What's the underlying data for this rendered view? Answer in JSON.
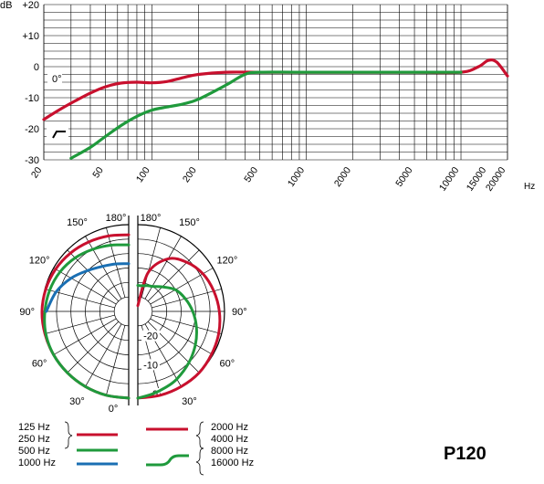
{
  "chart_data": [
    {
      "type": "line",
      "title": "",
      "xlabel": "Hz",
      "ylabel": "dB",
      "x_scale": "log",
      "xlim": [
        20,
        20000
      ],
      "ylim": [
        -30,
        20
      ],
      "x_tick_labels": [
        "20",
        "50",
        "100",
        "200",
        "500",
        "1000",
        "2000",
        "5000",
        "10000",
        "15000",
        "20000"
      ],
      "x_ticks": [
        20,
        50,
        100,
        200,
        500,
        1000,
        2000,
        5000,
        10000,
        15000,
        20000
      ],
      "y_tick_labels": [
        "+20",
        "+10",
        "0",
        "-10",
        "-20",
        "-30"
      ],
      "y_ticks": [
        20,
        10,
        0,
        -10,
        -20,
        -30
      ],
      "inset_labels": [
        "0°"
      ],
      "grid": true,
      "series": [
        {
          "color": "#c8102e",
          "x": [
            20,
            25,
            32,
            40,
            50,
            63,
            80,
            100,
            125,
            160,
            200,
            300,
            500,
            1000,
            2000,
            5000,
            10000,
            13000,
            15000,
            17000,
            20000
          ],
          "y": [
            -17,
            -14,
            -11,
            -8.5,
            -6.5,
            -5.3,
            -5,
            -5.2,
            -4.8,
            -3.5,
            -2.5,
            -1.8,
            -1.8,
            -1.8,
            -1.8,
            -1.8,
            -1.8,
            0,
            2,
            1.5,
            -3
          ]
        },
        {
          "color": "#1f9a3c",
          "x": [
            30,
            40,
            50,
            63,
            80,
            100,
            125,
            160,
            200,
            300,
            400,
            500,
            1000,
            5000,
            10000
          ],
          "y": [
            -29.5,
            -26,
            -22.5,
            -19,
            -16,
            -14,
            -13,
            -12,
            -10.5,
            -6,
            -2.5,
            -1.8,
            -1.8,
            -1.8,
            -1.8
          ]
        }
      ]
    },
    {
      "type": "line",
      "subtype": "polar",
      "title": "",
      "angle_labels": [
        "0°",
        "30°",
        "60°",
        "90°",
        "120°",
        "150°",
        "180°"
      ],
      "radial_labels": [
        "0",
        "-10",
        "-20"
      ],
      "rlim": [
        -30,
        0
      ],
      "series": [
        {
          "name": "125 Hz / 250 Hz",
          "side": "left",
          "color": "#c8102e",
          "angles": [
            0,
            15,
            30,
            45,
            60,
            75,
            90,
            105,
            120,
            135,
            150,
            165,
            180
          ],
          "db": [
            0,
            0,
            0,
            0,
            0,
            0,
            0,
            -0.3,
            -0.8,
            -1.5,
            -2.3,
            -3,
            -3.5
          ]
        },
        {
          "name": "500 Hz",
          "side": "left",
          "color": "#1f9a3c",
          "angles": [
            0,
            15,
            30,
            45,
            60,
            75,
            90,
            105,
            120,
            135,
            150,
            165,
            180
          ],
          "db": [
            0,
            0,
            0,
            0,
            0,
            -0.3,
            -1,
            -1.7,
            -2.6,
            -3.8,
            -5.2,
            -6.3,
            -7
          ]
        },
        {
          "name": "1000 Hz",
          "side": "left",
          "color": "#1a6fb3",
          "angles": [
            90,
            105,
            120,
            135,
            150,
            165,
            180
          ],
          "db": [
            -1.5,
            -4,
            -7,
            -10,
            -12,
            -13,
            -13.5
          ]
        },
        {
          "name": "2000 Hz / 4000 Hz",
          "side": "right",
          "color": "#c8102e",
          "angles": [
            0,
            15,
            30,
            45,
            60,
            75,
            90,
            105,
            120,
            135,
            150,
            165,
            180
          ],
          "db": [
            0,
            0,
            0,
            0,
            -0.5,
            -1,
            -1.8,
            -2.8,
            -4,
            -6,
            -9,
            -16,
            -28
          ]
        },
        {
          "name": "8000 Hz / 16000 Hz",
          "side": "right",
          "color": "#1f9a3c",
          "angles": [
            0,
            10,
            20,
            30,
            45,
            60,
            75,
            90,
            105,
            120,
            135,
            150,
            160,
            170,
            180
          ],
          "db": [
            0,
            -1,
            -2,
            -3,
            -5,
            -7,
            -9,
            -11,
            -13,
            -15,
            -18,
            -20,
            -20.5,
            -21,
            -21
          ]
        }
      ]
    }
  ],
  "legend": {
    "left": [
      {
        "label_a": "125 Hz",
        "label_b": "250 Hz",
        "color": "#c8102e"
      },
      {
        "label_a": "500 Hz",
        "label_b": "1000 Hz",
        "color_a": "#1f9a3c",
        "color_b": "#1a6fb3"
      }
    ],
    "right": [
      {
        "label_a": "2000 Hz",
        "label_b": "4000 Hz",
        "color": "#c8102e"
      },
      {
        "label_a": "8000 Hz",
        "label_b": "16000 Hz",
        "color": "#1f9a3c"
      }
    ]
  },
  "model": "P120"
}
